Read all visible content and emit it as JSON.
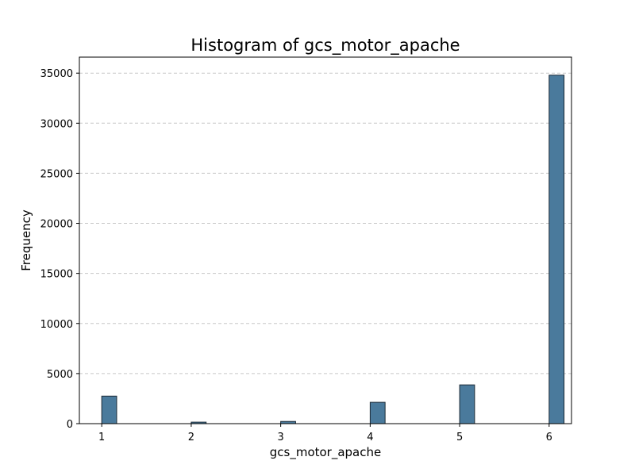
{
  "chart_data": {
    "type": "bar",
    "title": "Histogram of gcs_motor_apache",
    "xlabel": "gcs_motor_apache",
    "ylabel": "Frequency",
    "x": [
      1,
      2,
      3,
      4,
      5,
      6
    ],
    "values": [
      2750,
      150,
      220,
      2130,
      3870,
      34800
    ],
    "xlim": [
      0.75,
      6.25
    ],
    "ylim": [
      0,
      36600
    ],
    "xticks": [
      1,
      2,
      3,
      4,
      5,
      6
    ],
    "yticks": [
      0,
      5000,
      10000,
      15000,
      20000,
      25000,
      30000,
      35000
    ],
    "bin_width": 0.1667,
    "grid": "y-dashed",
    "colors": {
      "bar_fill": "#4a7a9c",
      "bar_edge": "#1c2a36",
      "grid": "#c8c8c8"
    }
  }
}
